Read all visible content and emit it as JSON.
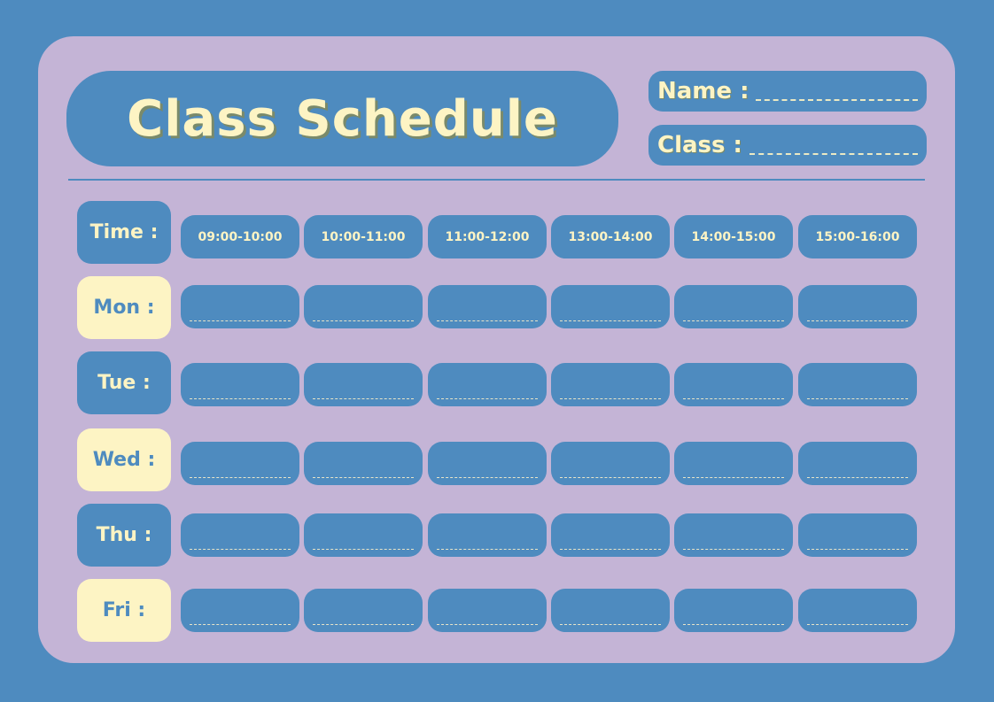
{
  "title": "Class Schedule",
  "fields": [
    {
      "label": "Name :"
    },
    {
      "label": "Class :"
    }
  ],
  "time_label": "Time :",
  "time_slots": [
    "09:00-10:00",
    "10:00-11:00",
    "11:00-12:00",
    "13:00-14:00",
    "14:00-15:00",
    "15:00-16:00"
  ],
  "days": [
    {
      "label": "Mon :",
      "style": "cream"
    },
    {
      "label": "Tue :",
      "style": "blue"
    },
    {
      "label": "Wed :",
      "style": "cream"
    },
    {
      "label": "Thu :",
      "style": "blue"
    },
    {
      "label": "Fri :",
      "style": "cream"
    }
  ],
  "colors": {
    "background": "#4e8bbf",
    "card": "#c4b4d6",
    "accent": "#fdf4c4"
  }
}
